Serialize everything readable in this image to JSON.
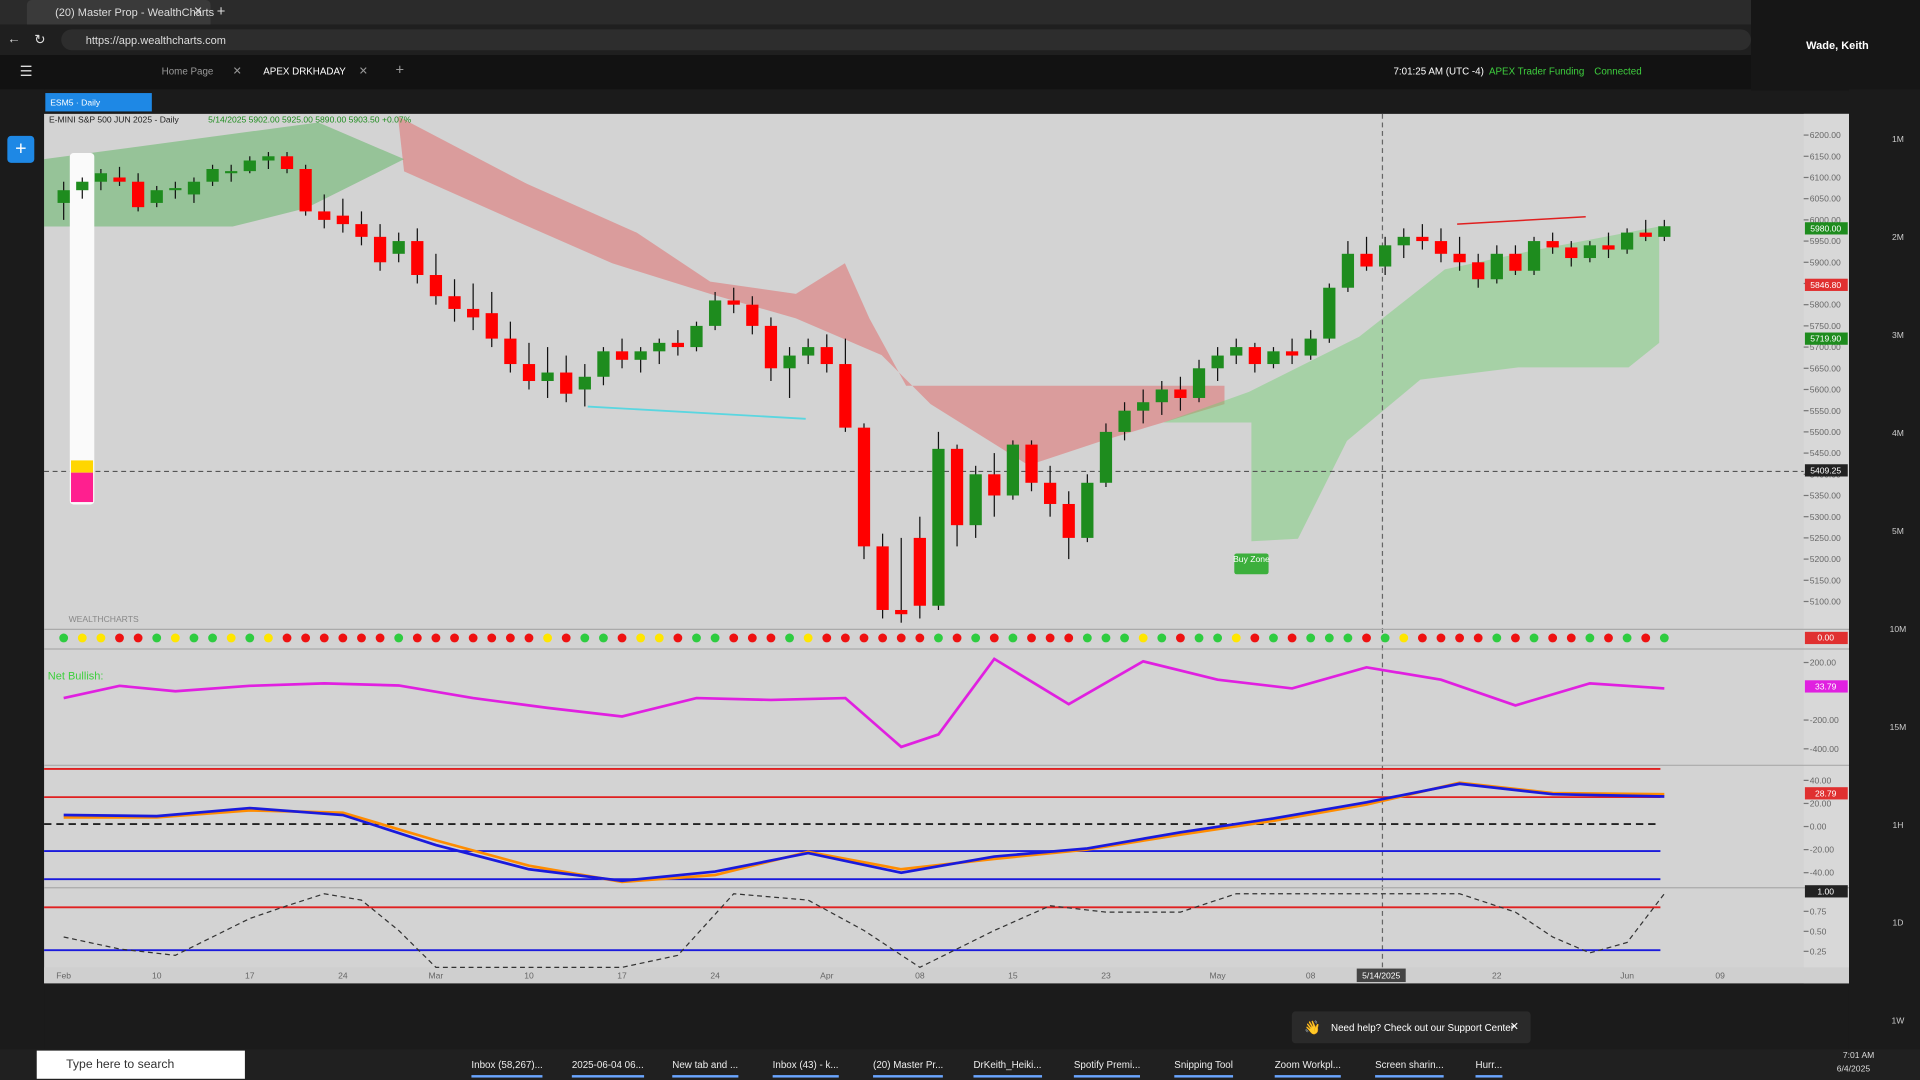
{
  "browser": {
    "tab_title": "(20) Master Prop - WealthCharts",
    "url": "https://app.wealthcharts.com"
  },
  "user": "Wade, Keith",
  "toolbar": {
    "tabs": [
      "Home Page",
      "APEX DRKHADAY"
    ],
    "time": "7:01:25 AM (UTC -4)",
    "account": "APEX Trader Funding",
    "status": "Connected"
  },
  "chart_header": {
    "symbol": "ESM5 · Daily",
    "legend": "E-MINI S&P 500 JUN 2025 - Daily",
    "ohlc": "5/14/2025  5902.00  5925.00  5890.00  5903.50  +0.07%",
    "signal_tag": "0.00"
  },
  "timeframes": [
    "1M",
    "2M",
    "3M",
    "4M",
    "5M",
    "10M",
    "15M",
    "1H",
    "1D",
    "1W"
  ],
  "chart_data": [
    {
      "type": "candlestick",
      "up_color": "#1e8c1e",
      "down_color": "#ff0000",
      "ylim": [
        5040,
        6250
      ],
      "categories": [
        "Feb",
        null,
        null,
        null,
        null,
        "10",
        null,
        null,
        null,
        null,
        "17",
        null,
        null,
        null,
        null,
        "24",
        null,
        null,
        null,
        null,
        "Mar",
        null,
        null,
        null,
        null,
        "10",
        null,
        null,
        null,
        null,
        "17",
        null,
        null,
        null,
        null,
        "24",
        null,
        null,
        null,
        null,
        null,
        "Apr",
        null,
        null,
        null,
        null,
        "08",
        null,
        null,
        null,
        null,
        "15",
        null,
        null,
        null,
        null,
        "23",
        null,
        null,
        null,
        null,
        null,
        "May",
        null,
        null,
        null,
        null,
        "08",
        null,
        null,
        null,
        null,
        null,
        null,
        null,
        null,
        null,
        "22",
        null,
        null,
        null,
        null,
        null,
        null,
        "Jun",
        null,
        null,
        null,
        null,
        "09"
      ],
      "candles": [
        [
          6040,
          6090,
          6000,
          6070
        ],
        [
          6070,
          6100,
          6050,
          6090
        ],
        [
          6090,
          6120,
          6070,
          6110
        ],
        [
          6100,
          6125,
          6080,
          6090
        ],
        [
          6090,
          6110,
          6020,
          6030
        ],
        [
          6040,
          6080,
          6030,
          6070
        ],
        [
          6070,
          6090,
          6050,
          6075
        ],
        [
          6060,
          6100,
          6040,
          6090
        ],
        [
          6090,
          6130,
          6080,
          6120
        ],
        [
          6110,
          6130,
          6090,
          6115
        ],
        [
          6115,
          6150,
          6110,
          6140
        ],
        [
          6140,
          6160,
          6120,
          6150
        ],
        [
          6150,
          6160,
          6110,
          6120
        ],
        [
          6120,
          6130,
          6010,
          6020
        ],
        [
          6020,
          6060,
          5980,
          6000
        ],
        [
          6010,
          6050,
          5970,
          5990
        ],
        [
          5990,
          6020,
          5940,
          5960
        ],
        [
          5960,
          5990,
          5880,
          5900
        ],
        [
          5920,
          5970,
          5900,
          5950
        ],
        [
          5950,
          5980,
          5850,
          5870
        ],
        [
          5870,
          5920,
          5800,
          5820
        ],
        [
          5820,
          5860,
          5760,
          5790
        ],
        [
          5790,
          5850,
          5740,
          5770
        ],
        [
          5780,
          5830,
          5700,
          5720
        ],
        [
          5720,
          5760,
          5640,
          5660
        ],
        [
          5660,
          5710,
          5600,
          5620
        ],
        [
          5620,
          5700,
          5580,
          5640
        ],
        [
          5640,
          5680,
          5570,
          5590
        ],
        [
          5600,
          5660,
          5560,
          5630
        ],
        [
          5630,
          5700,
          5610,
          5690
        ],
        [
          5690,
          5720,
          5650,
          5670
        ],
        [
          5670,
          5700,
          5640,
          5690
        ],
        [
          5690,
          5720,
          5660,
          5710
        ],
        [
          5710,
          5740,
          5680,
          5700
        ],
        [
          5700,
          5760,
          5690,
          5750
        ],
        [
          5750,
          5830,
          5740,
          5810
        ],
        [
          5810,
          5840,
          5780,
          5800
        ],
        [
          5800,
          5820,
          5730,
          5750
        ],
        [
          5750,
          5770,
          5620,
          5650
        ],
        [
          5650,
          5700,
          5580,
          5680
        ],
        [
          5680,
          5720,
          5660,
          5700
        ],
        [
          5700,
          5730,
          5640,
          5660
        ],
        [
          5660,
          5720,
          5500,
          5510
        ],
        [
          5510,
          5520,
          5200,
          5230
        ],
        [
          5230,
          5260,
          5060,
          5080
        ],
        [
          5080,
          5250,
          5050,
          5070
        ],
        [
          5250,
          5300,
          5060,
          5090
        ],
        [
          5090,
          5500,
          5080,
          5460
        ],
        [
          5460,
          5470,
          5230,
          5280
        ],
        [
          5280,
          5420,
          5250,
          5400
        ],
        [
          5400,
          5450,
          5300,
          5350
        ],
        [
          5350,
          5480,
          5340,
          5470
        ],
        [
          5470,
          5480,
          5360,
          5380
        ],
        [
          5380,
          5420,
          5300,
          5330
        ],
        [
          5330,
          5360,
          5200,
          5250
        ],
        [
          5250,
          5400,
          5240,
          5380
        ],
        [
          5380,
          5520,
          5370,
          5500
        ],
        [
          5500,
          5570,
          5480,
          5550
        ],
        [
          5550,
          5600,
          5520,
          5570
        ],
        [
          5570,
          5620,
          5540,
          5600
        ],
        [
          5600,
          5630,
          5550,
          5580
        ],
        [
          5580,
          5670,
          5570,
          5650
        ],
        [
          5650,
          5700,
          5620,
          5680
        ],
        [
          5680,
          5720,
          5660,
          5700
        ],
        [
          5700,
          5710,
          5640,
          5660
        ],
        [
          5660,
          5700,
          5650,
          5690
        ],
        [
          5690,
          5720,
          5660,
          5680
        ],
        [
          5680,
          5740,
          5670,
          5720
        ],
        [
          5720,
          5850,
          5710,
          5840
        ],
        [
          5840,
          5950,
          5830,
          5920
        ],
        [
          5920,
          5960,
          5880,
          5890
        ],
        [
          5890,
          5960,
          5870,
          5940
        ],
        [
          5940,
          5980,
          5910,
          5960
        ],
        [
          5960,
          5990,
          5930,
          5950
        ],
        [
          5950,
          5980,
          5900,
          5920
        ],
        [
          5920,
          5960,
          5880,
          5900
        ],
        [
          5900,
          5920,
          5840,
          5860
        ],
        [
          5860,
          5940,
          5850,
          5920
        ],
        [
          5920,
          5940,
          5870,
          5880
        ],
        [
          5880,
          5960,
          5870,
          5950
        ],
        [
          5950,
          5970,
          5920,
          5935
        ],
        [
          5935,
          5950,
          5890,
          5910
        ],
        [
          5910,
          5950,
          5900,
          5940
        ],
        [
          5940,
          5970,
          5910,
          5930
        ],
        [
          5930,
          5980,
          5920,
          5970
        ],
        [
          5970,
          6000,
          5950,
          5960
        ],
        [
          5960,
          6000,
          5950,
          5985
        ],
        null,
        null,
        null
      ],
      "yticks": [
        {
          "value": 5100,
          "label": "5100.00"
        },
        {
          "value": 5150,
          "label": "5150.00"
        },
        {
          "value": 5200,
          "label": "5200.00"
        },
        {
          "value": 5250,
          "label": "5250.00"
        },
        {
          "value": 5300,
          "label": "5300.00"
        },
        {
          "value": 5350,
          "label": "5350.00"
        },
        {
          "value": 5400,
          "label": "5400.00"
        },
        {
          "value": 5450,
          "label": "5450.00"
        },
        {
          "value": 5500,
          "label": "5500.00"
        },
        {
          "value": 5550,
          "label": "5550.00"
        },
        {
          "value": 5600,
          "label": "5600.00"
        },
        {
          "value": 5650,
          "label": "5650.00"
        },
        {
          "value": 5700,
          "label": "5700.00"
        },
        {
          "value": 5750,
          "label": "5750.00"
        },
        {
          "value": 5800,
          "label": "5800.00"
        },
        {
          "value": 5850,
          "label": "5850.00"
        },
        {
          "value": 5900,
          "label": "5900.00"
        },
        {
          "value": 5950,
          "label": "5950.00"
        },
        {
          "value": 6000,
          "label": "6000.00"
        },
        {
          "value": 6050,
          "label": "6050.00"
        },
        {
          "value": 6100,
          "label": "6100.00"
        },
        {
          "value": 6150,
          "label": "6150.00"
        },
        {
          "value": 6200,
          "label": "6200.00"
        }
      ],
      "price_tags": [
        {
          "value": 5980,
          "label": "5980.00",
          "color": "#1e8c1e"
        },
        {
          "value": 5846.8,
          "label": "5846.80",
          "color": "#e03030"
        },
        {
          "value": 5719.9,
          "label": "5719.90",
          "color": "#1e8c1e"
        },
        {
          "value": 5409.25,
          "label": "5409.25",
          "color": "#222222"
        }
      ],
      "crosshair_label": "5/14/2025",
      "buy_zone": "Buy Zone",
      "watermark": "WEALTHCHARTS"
    },
    {
      "type": "line",
      "title": "Net Bullish:",
      "ylim": [
        -489,
        277
      ],
      "x": [
        0,
        3,
        6,
        10,
        14,
        18,
        22,
        26,
        30,
        34,
        38,
        42,
        45,
        47,
        50,
        54,
        58,
        62,
        66,
        70,
        74,
        78,
        82,
        86
      ],
      "series": [
        {
          "color": "#e020e0",
          "values": [
            -47,
            38,
            0,
            38,
            55,
            40,
            -47,
            -115,
            -175,
            -47,
            -60,
            -47,
            -387,
            -300,
            225,
            -90,
            208,
            80,
            20,
            166,
            80,
            -98,
            55,
            20
          ]
        }
      ],
      "yticks": [
        {
          "value": 200,
          "label": "200.00"
        },
        {
          "value": -200,
          "label": "-200.00"
        },
        {
          "value": -400,
          "label": "-400.00"
        }
      ],
      "tag": {
        "value": 33.79,
        "label": "33.79",
        "color": "#e020e0"
      }
    },
    {
      "type": "line",
      "ylim": [
        -52,
        52
      ],
      "x": [
        0,
        5,
        10,
        15,
        20,
        25,
        30,
        35,
        40,
        45,
        50,
        55,
        60,
        65,
        70,
        75,
        80,
        86
      ],
      "series": [
        {
          "color": "#ff8c00",
          "values": [
            8,
            8,
            14,
            12,
            -12,
            -34,
            -48,
            -42,
            -22,
            -37,
            -28,
            -20,
            -7,
            5,
            19,
            38,
            29,
            28
          ]
        },
        {
          "color": "#1a1adc",
          "values": [
            10,
            9,
            16,
            10,
            -16,
            -37,
            -47,
            -39,
            -23,
            -40,
            -26,
            -19,
            -5,
            7,
            21,
            37,
            28,
            26
          ]
        }
      ],
      "yticks": [
        {
          "value": 40,
          "label": "40.00"
        },
        {
          "value": 20,
          "label": "20.00"
        },
        {
          "value": 0,
          "label": "0.00"
        },
        {
          "value": -20,
          "label": "-20.00"
        },
        {
          "value": -40,
          "label": "-40.00"
        }
      ],
      "tag": {
        "value": 28.79,
        "label": "28.79",
        "color": "#e03030"
      }
    },
    {
      "type": "line",
      "dashed": true,
      "ylim": [
        0.05,
        1.06
      ],
      "x": [
        0,
        3,
        6,
        10,
        12,
        14,
        16,
        18,
        20,
        24,
        30,
        33,
        36,
        40,
        43,
        46,
        50,
        53,
        56,
        60,
        63,
        68,
        75,
        78,
        80,
        82,
        84,
        86
      ],
      "series": [
        {
          "color": "#333333",
          "values": [
            0.43,
            0.28,
            0.2,
            0.66,
            0.82,
            0.97,
            0.89,
            0.51,
            0.05,
            0.05,
            0.05,
            0.2,
            0.97,
            0.89,
            0.51,
            0.05,
            0.51,
            0.82,
            0.74,
            0.74,
            0.97,
            0.97,
            0.97,
            0.74,
            0.43,
            0.23,
            0.36,
            0.97
          ]
        }
      ],
      "yticks": [
        {
          "value": 0.75,
          "label": "0.75"
        },
        {
          "value": 0.5,
          "label": "0.50"
        },
        {
          "value": 0.25,
          "label": "0.25"
        }
      ],
      "tag": {
        "value": 1,
        "label": "1.00",
        "color": "#222222"
      }
    }
  ],
  "support": "Need help? Check out our Support Center",
  "taskbar": {
    "search": "Type here to search",
    "apps": [
      "Inbox (58,267)...",
      "2025-06-04 06...",
      "New tab and ...",
      "Inbox (43) - k...",
      "(20) Master Pr...",
      "DrKeith_Heiki...",
      "Spotify Premi...",
      "Snipping Tool",
      "Zoom Workpl...",
      "Screen sharin...",
      "Hurr..."
    ],
    "time": "7:01 AM",
    "date": "6/4/2025"
  }
}
